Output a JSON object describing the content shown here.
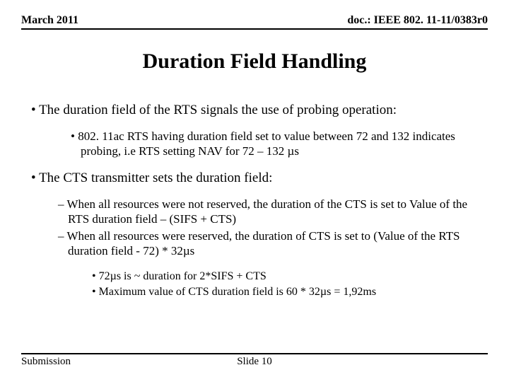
{
  "header": {
    "left": "March 2011",
    "right": "doc.: IEEE 802. 11-11/0383r0"
  },
  "title": "Duration Field Handling",
  "bullets": {
    "b1": "The duration field of the RTS signals the use of probing operation:",
    "b1_1": "802. 11ac RTS having duration field set to value between 72 and 132 indicates probing, i.e RTS setting NAV for 72 – 132 µs",
    "b2": "The CTS transmitter sets the duration field:",
    "b2_1": "When all resources were not reserved, the duration of the CTS is set to Value of the RTS duration field – (SIFS + CTS)",
    "b2_2": "When all resources were reserved, the duration of CTS is set to (Value of the RTS duration field - 72) * 32µs",
    "b2_2_1": "72µs is ~ duration for 2*SIFS + CTS",
    "b2_2_2": "Maximum value of CTS duration field is 60 * 32µs = 1,92ms"
  },
  "footer": {
    "left": "Submission",
    "center": "Slide 10"
  }
}
